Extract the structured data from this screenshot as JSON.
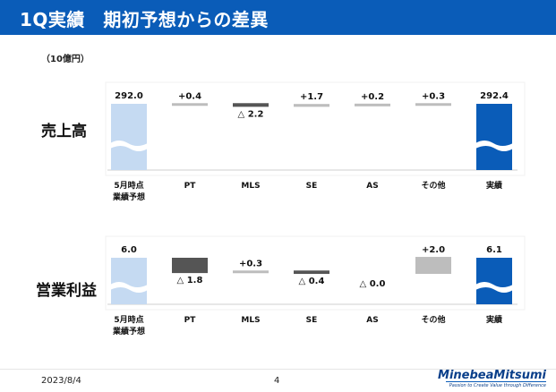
{
  "header": {
    "title": "1Q実績　期初予想からの差異"
  },
  "unit_label": "（10億円）",
  "footer": {
    "date": "2023/8/4",
    "page": "4",
    "logo": "MinebeaMitsumi",
    "tagline": "Passion to Create Value through Difference"
  },
  "colors": {
    "header": "#0a5cb8",
    "base_light": "#c5daf2",
    "actual": "#0a5cb8",
    "decrease": "#555555",
    "increase": "#bdbdbd"
  },
  "chart_data": [
    {
      "type": "waterfall",
      "title": "売上高",
      "categories": [
        "5月時点\n業績予想",
        "PT",
        "MLS",
        "SE",
        "AS",
        "その他",
        "実績"
      ],
      "values": [
        292.0,
        0.4,
        -2.2,
        1.7,
        0.2,
        0.3,
        292.4
      ],
      "labels": [
        "292.0",
        "+0.4",
        "△ 2.2",
        "+1.7",
        "+0.2",
        "+0.3",
        "292.4"
      ],
      "kinds": [
        "base",
        "delta",
        "delta",
        "delta",
        "delta",
        "delta",
        "total"
      ],
      "axis_break": true
    },
    {
      "type": "waterfall",
      "title": "営業利益",
      "categories": [
        "5月時点\n業績予想",
        "PT",
        "MLS",
        "SE",
        "AS",
        "その他",
        "実績"
      ],
      "values": [
        6.0,
        -1.8,
        0.3,
        -0.4,
        0.0,
        2.0,
        6.1
      ],
      "labels": [
        "6.0",
        "△ 1.8",
        "+0.3",
        "△ 0.4",
        "△ 0.0",
        "+2.0",
        "6.1"
      ],
      "kinds": [
        "base",
        "delta",
        "delta",
        "delta",
        "delta",
        "delta",
        "total"
      ],
      "axis_break": true
    }
  ]
}
